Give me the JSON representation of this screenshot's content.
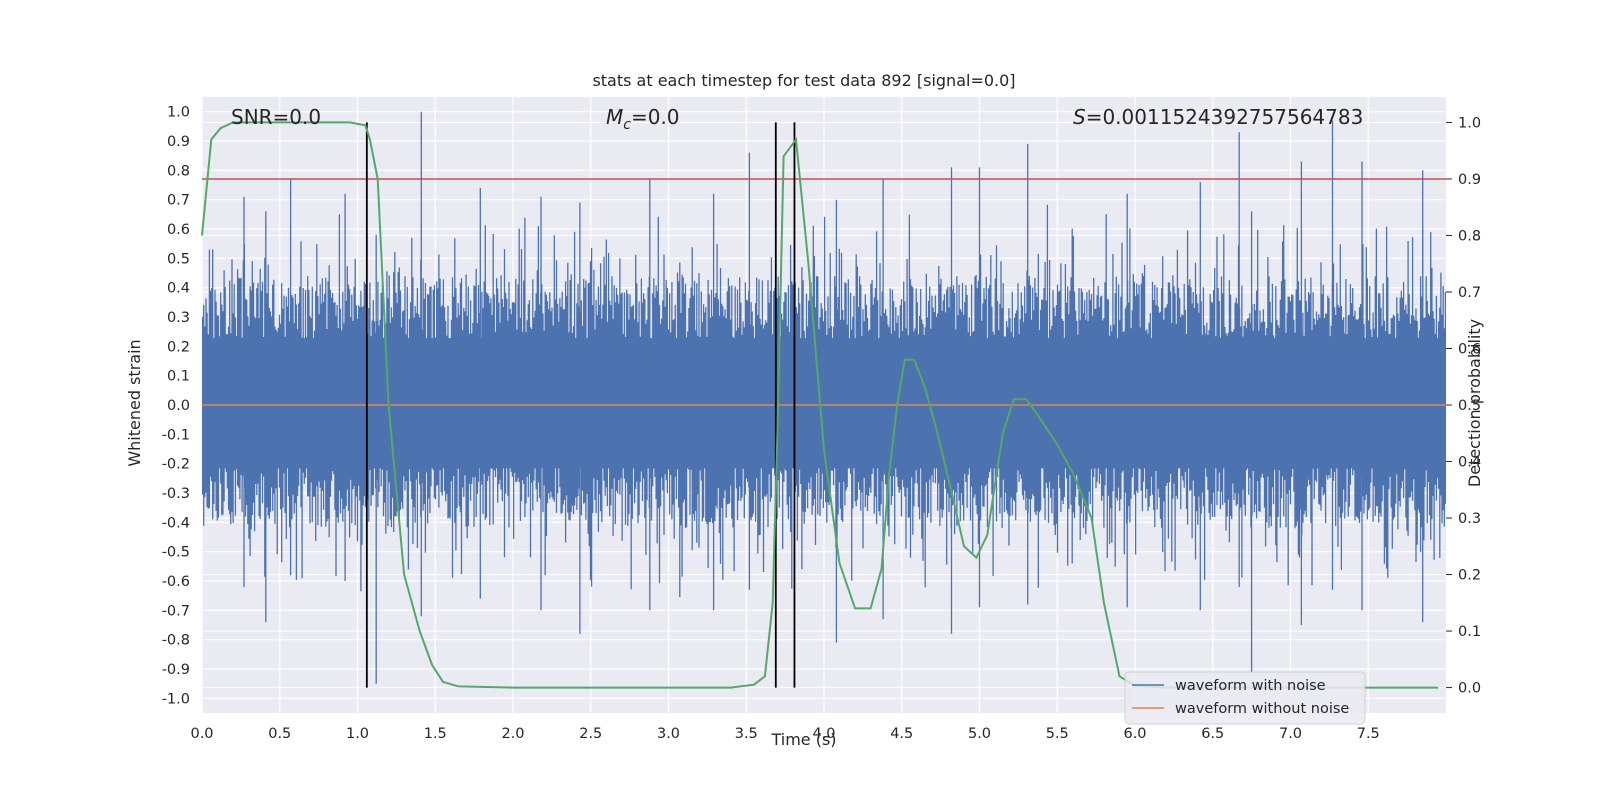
{
  "chart_data": {
    "type": "line",
    "title": "stats at each timestep for test data 892 [signal=0.0]",
    "xlabel": "Time (s)",
    "ylabel": "Whitened strain",
    "y2label": "Detection probability",
    "xlim": [
      0.0,
      8.0
    ],
    "ylim": [
      -1.05,
      1.05
    ],
    "y2lim": [
      -0.045,
      1.045
    ],
    "xticks": [
      "0.0",
      "0.5",
      "1.0",
      "1.5",
      "2.0",
      "2.5",
      "3.0",
      "3.5",
      "4.0",
      "4.5",
      "5.0",
      "5.5",
      "6.0",
      "6.5",
      "7.0",
      "7.5"
    ],
    "yticks": [
      "1.0",
      "0.9",
      "0.8",
      "0.7",
      "0.6",
      "0.5",
      "0.4",
      "0.3",
      "0.2",
      "0.1",
      "0.0",
      "-0.1",
      "-0.2",
      "-0.3",
      "-0.4",
      "-0.5",
      "-0.6",
      "-0.7",
      "-0.8",
      "-0.9",
      "-1.0"
    ],
    "y2ticks": [
      "1.0",
      "0.9",
      "0.8",
      "0.7",
      "0.6",
      "0.5",
      "0.4",
      "0.3",
      "0.2",
      "0.1",
      "0.0"
    ],
    "grid": true,
    "legend_position": "lower-right",
    "annotations": {
      "snr": "SNR=0.0",
      "mc_symbol": "M",
      "mc_sub": "c",
      "mc_value": "=0.0",
      "s_symbol": "S",
      "s_value": "=0.0011524392757564783"
    },
    "series": [
      {
        "name": "waveform with noise",
        "color": "#4c72b0",
        "noise_envelope": {
          "core_lower": -0.36,
          "core_upper": 0.38,
          "spikes": [
            [
              0.27,
              0.71,
              -0.62
            ],
            [
              0.41,
              0.66,
              -0.74
            ],
            [
              0.57,
              0.77,
              -0.58
            ],
            [
              0.92,
              0.72,
              -0.6
            ],
            [
              1.12,
              0.58,
              -0.95
            ],
            [
              1.41,
              1.0,
              -0.72
            ],
            [
              1.79,
              0.74,
              -0.66
            ],
            [
              2.18,
              0.71,
              -0.7
            ],
            [
              2.43,
              0.69,
              -0.78
            ],
            [
              2.88,
              0.77,
              -0.7
            ],
            [
              3.29,
              0.72,
              -0.7
            ],
            [
              3.52,
              0.86,
              -0.63
            ],
            [
              3.69,
              0.89,
              -0.69
            ],
            [
              4.08,
              0.7,
              -0.81
            ],
            [
              4.38,
              0.77,
              -0.73
            ],
            [
              4.82,
              0.81,
              -0.78
            ],
            [
              5.0,
              0.81,
              -0.69
            ],
            [
              5.31,
              0.89,
              -0.68
            ],
            [
              5.95,
              0.72,
              -0.69
            ],
            [
              6.42,
              0.76,
              -0.7
            ],
            [
              6.67,
              0.93,
              -0.62
            ],
            [
              6.75,
              0.66,
              -0.91
            ],
            [
              7.07,
              0.83,
              -0.75
            ],
            [
              7.27,
              0.97,
              -0.63
            ],
            [
              7.46,
              0.83,
              -0.7
            ],
            [
              7.85,
              0.8,
              -0.74
            ]
          ]
        }
      },
      {
        "name": "waveform without noise",
        "color": "#dd8452",
        "x": [
          0.0,
          8.0
        ],
        "y": [
          0.0,
          0.0
        ]
      },
      {
        "name": "detection probability",
        "axis": "right",
        "color": "#55a868",
        "x": [
          0.0,
          0.06,
          0.12,
          0.2,
          0.4,
          0.6,
          0.8,
          0.95,
          1.05,
          1.08,
          1.13,
          1.2,
          1.3,
          1.4,
          1.48,
          1.55,
          1.65,
          2.0,
          2.5,
          3.0,
          3.4,
          3.55,
          3.62,
          3.67,
          3.7,
          3.74,
          3.82,
          3.9,
          4.0,
          4.1,
          4.2,
          4.3,
          4.37,
          4.42,
          4.47,
          4.52,
          4.58,
          4.65,
          4.72,
          4.8,
          4.9,
          4.98,
          5.05,
          5.15,
          5.22,
          5.3,
          5.38,
          5.5,
          5.6,
          5.72,
          5.8,
          5.9,
          6.0,
          6.2,
          6.5,
          7.0,
          7.5,
          7.95
        ],
        "y": [
          0.8,
          0.97,
          0.99,
          1.0,
          1.0,
          1.0,
          1.0,
          1.0,
          0.995,
          0.97,
          0.9,
          0.5,
          0.2,
          0.1,
          0.04,
          0.01,
          0.002,
          0.0,
          0.0,
          0.0,
          0.0,
          0.005,
          0.02,
          0.15,
          0.45,
          0.94,
          0.97,
          0.75,
          0.42,
          0.22,
          0.14,
          0.14,
          0.21,
          0.38,
          0.5,
          0.58,
          0.58,
          0.53,
          0.46,
          0.37,
          0.25,
          0.23,
          0.27,
          0.45,
          0.51,
          0.51,
          0.48,
          0.43,
          0.38,
          0.3,
          0.15,
          0.02,
          0.003,
          0.0,
          0.0,
          0.0,
          0.0,
          0.0
        ]
      }
    ],
    "vertical_lines_x": [
      1.06,
      3.69,
      3.81
    ],
    "threshold_line": {
      "axis": "right",
      "y": 0.9,
      "color": "#c44e52"
    }
  }
}
